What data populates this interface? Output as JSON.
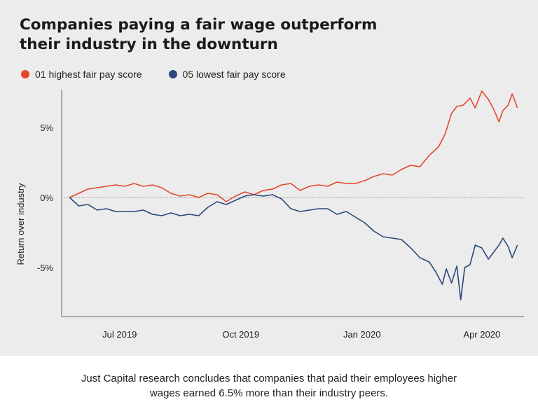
{
  "title": {
    "line1": "Companies paying a fair wage outperform",
    "line2": "their industry in the downturn"
  },
  "legend": [
    {
      "label": "01 highest fair pay score",
      "color": "#e4472a"
    },
    {
      "label": "05 lowest fair pay score",
      "color": "#2b4878"
    }
  ],
  "caption": {
    "line1": "Just Capital research concludes that companies that paid their employees higher",
    "line2": "wages earned 6.5% more than their industry peers."
  },
  "chart_data": {
    "type": "line",
    "ylabel": "Return over industry",
    "xlabel": "",
    "ylim": [
      -8.5,
      7.7
    ],
    "xlim": [
      "2019-05-18",
      "2020-05-03"
    ],
    "y_ticks": [
      {
        "value": 5,
        "label": "5%"
      },
      {
        "value": 0,
        "label": "0%"
      },
      {
        "value": -5,
        "label": "-5%"
      }
    ],
    "x_ticks": [
      {
        "value": "2019-07-01",
        "label": "Jul 2019"
      },
      {
        "value": "2019-10-01",
        "label": "Oct 2019"
      },
      {
        "value": "2020-01-01",
        "label": "Jan 2020"
      },
      {
        "value": "2020-04-01",
        "label": "Apr 2020"
      }
    ],
    "zero_line": "dotted",
    "grid": false,
    "legend_position": "top-left",
    "series": [
      {
        "name": "01 highest fair pay score",
        "color": "#e4472a",
        "points": [
          [
            "2019-05-24",
            0.0
          ],
          [
            "2019-05-31",
            0.3
          ],
          [
            "2019-06-07",
            0.6
          ],
          [
            "2019-06-14",
            0.7
          ],
          [
            "2019-06-21",
            0.8
          ],
          [
            "2019-06-28",
            0.9
          ],
          [
            "2019-07-05",
            0.8
          ],
          [
            "2019-07-12",
            1.0
          ],
          [
            "2019-07-19",
            0.8
          ],
          [
            "2019-07-26",
            0.9
          ],
          [
            "2019-08-02",
            0.7
          ],
          [
            "2019-08-09",
            0.3
          ],
          [
            "2019-08-16",
            0.1
          ],
          [
            "2019-08-23",
            0.2
          ],
          [
            "2019-08-30",
            0.0
          ],
          [
            "2019-09-06",
            0.3
          ],
          [
            "2019-09-13",
            0.2
          ],
          [
            "2019-09-20",
            -0.3
          ],
          [
            "2019-09-27",
            0.1
          ],
          [
            "2019-10-04",
            0.4
          ],
          [
            "2019-10-11",
            0.2
          ],
          [
            "2019-10-18",
            0.5
          ],
          [
            "2019-10-25",
            0.6
          ],
          [
            "2019-11-01",
            0.9
          ],
          [
            "2019-11-08",
            1.0
          ],
          [
            "2019-11-15",
            0.5
          ],
          [
            "2019-11-22",
            0.8
          ],
          [
            "2019-11-29",
            0.9
          ],
          [
            "2019-12-06",
            0.8
          ],
          [
            "2019-12-13",
            1.1
          ],
          [
            "2019-12-20",
            1.0
          ],
          [
            "2019-12-27",
            1.0
          ],
          [
            "2020-01-03",
            1.2
          ],
          [
            "2020-01-10",
            1.5
          ],
          [
            "2020-01-17",
            1.7
          ],
          [
            "2020-01-24",
            1.6
          ],
          [
            "2020-01-31",
            2.0
          ],
          [
            "2020-02-07",
            2.3
          ],
          [
            "2020-02-14",
            2.2
          ],
          [
            "2020-02-21",
            3.0
          ],
          [
            "2020-02-28",
            3.6
          ],
          [
            "2020-03-04",
            4.5
          ],
          [
            "2020-03-09",
            6.0
          ],
          [
            "2020-03-13",
            6.5
          ],
          [
            "2020-03-18",
            6.6
          ],
          [
            "2020-03-23",
            7.1
          ],
          [
            "2020-03-27",
            6.4
          ],
          [
            "2020-04-01",
            7.6
          ],
          [
            "2020-04-06",
            7.0
          ],
          [
            "2020-04-10",
            6.3
          ],
          [
            "2020-04-14",
            5.4
          ],
          [
            "2020-04-17",
            6.2
          ],
          [
            "2020-04-21",
            6.6
          ],
          [
            "2020-04-24",
            7.4
          ],
          [
            "2020-04-28",
            6.4
          ]
        ]
      },
      {
        "name": "05 lowest fair pay score",
        "color": "#2b4878",
        "points": [
          [
            "2019-05-24",
            0.0
          ],
          [
            "2019-05-31",
            -0.6
          ],
          [
            "2019-06-07",
            -0.5
          ],
          [
            "2019-06-14",
            -0.9
          ],
          [
            "2019-06-21",
            -0.8
          ],
          [
            "2019-06-28",
            -1.0
          ],
          [
            "2019-07-05",
            -1.0
          ],
          [
            "2019-07-12",
            -1.0
          ],
          [
            "2019-07-19",
            -0.9
          ],
          [
            "2019-07-26",
            -1.2
          ],
          [
            "2019-08-02",
            -1.3
          ],
          [
            "2019-08-09",
            -1.1
          ],
          [
            "2019-08-16",
            -1.3
          ],
          [
            "2019-08-23",
            -1.2
          ],
          [
            "2019-08-30",
            -1.3
          ],
          [
            "2019-09-06",
            -0.7
          ],
          [
            "2019-09-13",
            -0.3
          ],
          [
            "2019-09-20",
            -0.5
          ],
          [
            "2019-09-27",
            -0.2
          ],
          [
            "2019-10-04",
            0.1
          ],
          [
            "2019-10-11",
            0.2
          ],
          [
            "2019-10-18",
            0.1
          ],
          [
            "2019-10-25",
            0.2
          ],
          [
            "2019-11-01",
            -0.1
          ],
          [
            "2019-11-08",
            -0.8
          ],
          [
            "2019-11-15",
            -1.0
          ],
          [
            "2019-11-22",
            -0.9
          ],
          [
            "2019-11-29",
            -0.8
          ],
          [
            "2019-12-06",
            -0.8
          ],
          [
            "2019-12-13",
            -1.2
          ],
          [
            "2019-12-20",
            -1.0
          ],
          [
            "2019-12-27",
            -1.4
          ],
          [
            "2020-01-03",
            -1.8
          ],
          [
            "2020-01-10",
            -2.4
          ],
          [
            "2020-01-17",
            -2.8
          ],
          [
            "2020-01-24",
            -2.9
          ],
          [
            "2020-01-31",
            -3.0
          ],
          [
            "2020-02-07",
            -3.6
          ],
          [
            "2020-02-14",
            -4.3
          ],
          [
            "2020-02-21",
            -4.6
          ],
          [
            "2020-02-26",
            -5.3
          ],
          [
            "2020-03-02",
            -6.2
          ],
          [
            "2020-03-05",
            -5.1
          ],
          [
            "2020-03-09",
            -6.1
          ],
          [
            "2020-03-13",
            -4.9
          ],
          [
            "2020-03-16",
            -7.3
          ],
          [
            "2020-03-19",
            -5.0
          ],
          [
            "2020-03-23",
            -4.8
          ],
          [
            "2020-03-27",
            -3.4
          ],
          [
            "2020-04-01",
            -3.6
          ],
          [
            "2020-04-06",
            -4.4
          ],
          [
            "2020-04-10",
            -3.9
          ],
          [
            "2020-04-14",
            -3.4
          ],
          [
            "2020-04-17",
            -2.9
          ],
          [
            "2020-04-21",
            -3.5
          ],
          [
            "2020-04-24",
            -4.3
          ],
          [
            "2020-04-28",
            -3.4
          ]
        ]
      }
    ]
  }
}
